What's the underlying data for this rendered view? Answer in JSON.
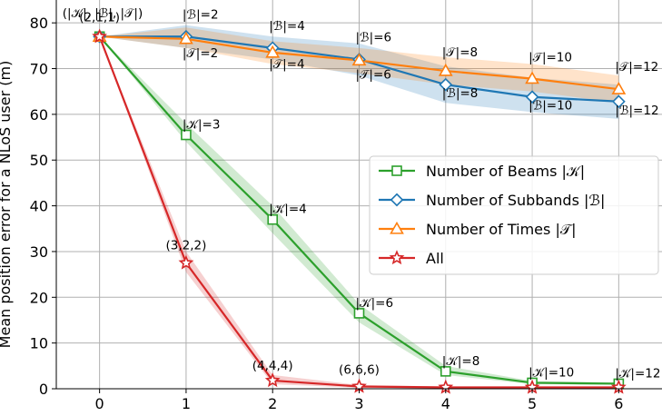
{
  "chart_data": {
    "type": "line",
    "xlabel": "",
    "ylabel": "Mean position error for a NLoS user (m)",
    "xlim": [
      -0.5,
      6.5
    ],
    "ylim": [
      0,
      85
    ],
    "x_ticks": [
      "0",
      "1",
      "2",
      "3",
      "4",
      "5",
      "6"
    ],
    "y_ticks": [
      "0",
      "10",
      "20",
      "30",
      "40",
      "50",
      "60",
      "70",
      "80"
    ],
    "grid": true,
    "legend_position": "center-right",
    "series": [
      {
        "name": "Number of Beams |𝒦|",
        "color": "#2ca02c",
        "marker": "square",
        "x": [
          0,
          1,
          2,
          3,
          4,
          5,
          6
        ],
        "y": [
          77,
          55.5,
          37,
          16.5,
          3.8,
          1.3,
          1.1
        ],
        "band_low": [
          77,
          54,
          34,
          14.5,
          3.0,
          1.0,
          0.9
        ],
        "band_high": [
          77,
          58,
          40,
          18.5,
          5.0,
          1.7,
          1.4
        ],
        "labels": [
          "",
          "|𝒦|=3",
          "|𝒦|=4",
          "|𝒦|=6",
          "|𝒦|=8",
          "|𝒦|=10",
          "|𝒦|=12"
        ]
      },
      {
        "name": "Number of Subbands |ℬ|",
        "color": "#1f77b4",
        "marker": "diamond",
        "x": [
          0,
          1,
          2,
          3,
          4,
          5,
          6
        ],
        "y": [
          77,
          77,
          74.5,
          72,
          66.5,
          63.8,
          62.8
        ],
        "band_low": [
          77,
          74.5,
          72,
          68.5,
          62.5,
          60.5,
          59
        ],
        "band_high": [
          77,
          79.5,
          77,
          75.5,
          70.5,
          68,
          66.5
        ],
        "labels": [
          "",
          "|ℬ|=2",
          "|ℬ|=4",
          "|ℬ|=6",
          "|ℬ|=8",
          "|ℬ|=10",
          "|ℬ|=12"
        ]
      },
      {
        "name": "Number of Times |𝒯|",
        "color": "#ff7f0e",
        "marker": "triangle",
        "x": [
          0,
          1,
          2,
          3,
          4,
          5,
          6
        ],
        "y": [
          77,
          76.5,
          73.5,
          71.8,
          69.5,
          67.8,
          65.5
        ],
        "band_low": [
          77,
          74.5,
          71,
          69,
          66.5,
          65,
          62.5
        ],
        "band_high": [
          77,
          79,
          76,
          74.5,
          72.5,
          71,
          68.5
        ],
        "labels": [
          "",
          "|𝒯|=2",
          "|𝒯|=4",
          "|𝒯|=6",
          "|𝒯|=8",
          "|𝒯|=10",
          "|𝒯|=12"
        ]
      },
      {
        "name": "All",
        "color": "#d62728",
        "marker": "star",
        "x": [
          0,
          1,
          2,
          3,
          4,
          5,
          6
        ],
        "y": [
          77,
          27.5,
          1.8,
          0.5,
          0.3,
          0.3,
          0.3
        ],
        "band_low": [
          77,
          25.5,
          1.0,
          0.2,
          0.1,
          0.1,
          0.1
        ],
        "band_high": [
          77,
          30,
          3.0,
          0.8,
          0.5,
          0.5,
          0.5
        ],
        "labels": [
          "(2,1,1)",
          "(3,2,2)",
          "(4,4,4)",
          "(6,6,6)",
          "",
          "",
          ""
        ]
      }
    ],
    "annotations": {
      "origin_header": "(|𝒦|, |ℬ|, |𝒯|)"
    }
  }
}
